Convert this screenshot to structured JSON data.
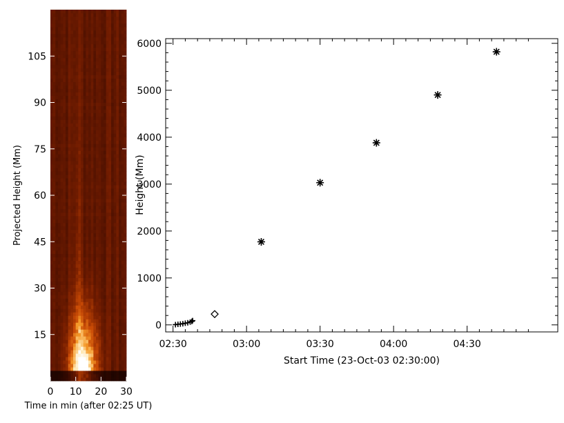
{
  "chart_data": [
    {
      "type": "heatmap",
      "xlabel": "Time in min (after 02:25 UT)",
      "ylabel": "Projected Height (Mm)",
      "xlim": [
        0,
        30
      ],
      "ylim": [
        0,
        120
      ],
      "x_ticks": [
        "0",
        "10",
        "20",
        "30"
      ],
      "y_ticks": [
        "15",
        "30",
        "45",
        "60",
        "75",
        "90",
        "105"
      ],
      "colormap": [
        "#000000",
        "#3a0a00",
        "#7a1f00",
        "#c84a05",
        "#f59a2a",
        "#ffe6b0",
        "#ffffff"
      ],
      "intensity_peak": {
        "time_min": 13,
        "height_Mm": 5
      }
    },
    {
      "type": "scatter",
      "xlabel": "Start Time (23-Oct-03 02:30:00)",
      "ylabel": "Height (Mm)",
      "xlim_minutes_after_0230": [
        -3,
        157
      ],
      "ylim": [
        -150,
        6100
      ],
      "x_ticks": [
        "02:30",
        "03:00",
        "03:30",
        "04:00",
        "04:30"
      ],
      "y_ticks": [
        "0",
        "1000",
        "2000",
        "3000",
        "4000",
        "5000",
        "6000"
      ],
      "series": [
        {
          "marker": "plus",
          "points": [
            {
              "t": "02:31:00",
              "y": 5
            },
            {
              "t": "02:32:00",
              "y": 12
            },
            {
              "t": "02:33:00",
              "y": 18
            },
            {
              "t": "02:34:00",
              "y": 25
            },
            {
              "t": "02:35:00",
              "y": 35
            },
            {
              "t": "02:36:00",
              "y": 45
            },
            {
              "t": "02:37:00",
              "y": 60
            },
            {
              "t": "02:37:40",
              "y": 75
            },
            {
              "t": "02:38:00",
              "y": 90
            }
          ]
        },
        {
          "marker": "diamond",
          "points": [
            {
              "t": "02:47:00",
              "y": 230
            }
          ]
        },
        {
          "marker": "asterisk",
          "points": [
            {
              "t": "03:06:00",
              "y": 1770
            },
            {
              "t": "03:30:00",
              "y": 3030
            },
            {
              "t": "03:53:00",
              "y": 3880
            },
            {
              "t": "04:18:00",
              "y": 4900
            },
            {
              "t": "04:42:00",
              "y": 5820
            }
          ]
        }
      ]
    }
  ]
}
